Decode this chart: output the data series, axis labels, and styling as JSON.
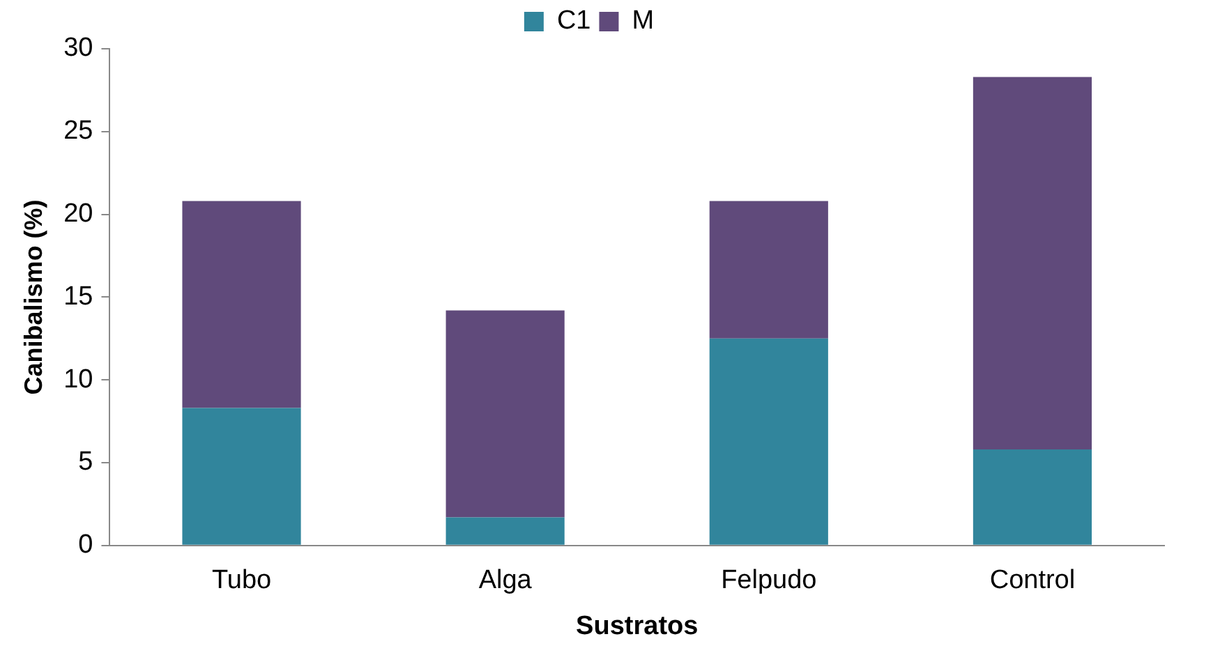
{
  "chart_data": {
    "type": "bar",
    "stacked": true,
    "xlabel": "Sustratos",
    "ylabel": "Canibalismo (%)",
    "categories": [
      "Tubo",
      "Alga",
      "Felpudo",
      "Control"
    ],
    "series": [
      {
        "name": "C1",
        "color": "#31859c",
        "values": [
          8.3,
          1.7,
          12.5,
          5.8
        ]
      },
      {
        "name": "M",
        "color": "#604a7b",
        "values": [
          12.5,
          12.5,
          8.3,
          22.5
        ]
      }
    ],
    "ylim": [
      0,
      30
    ],
    "yticks": [
      0,
      5,
      10,
      15,
      20,
      25,
      30
    ],
    "grid": false,
    "legend": "top"
  }
}
